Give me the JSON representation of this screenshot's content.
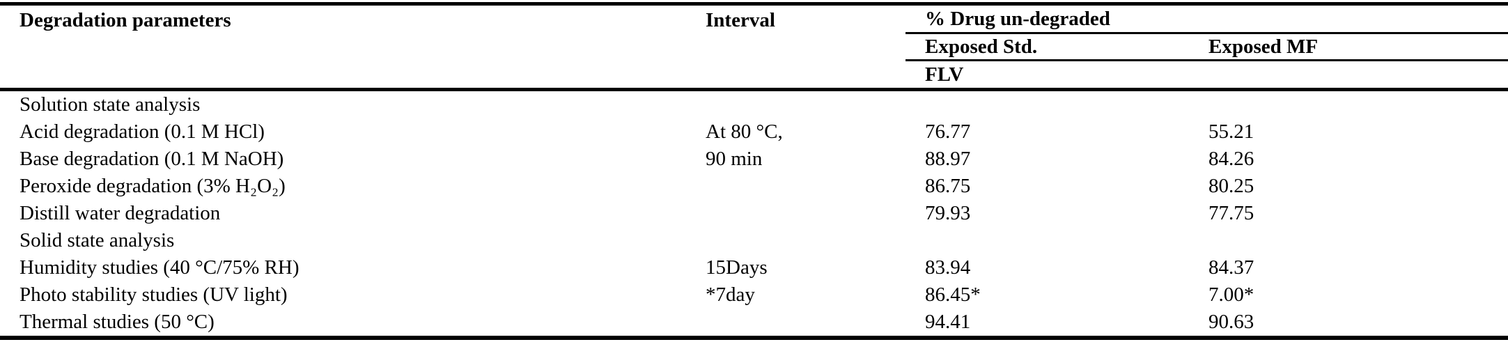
{
  "table": {
    "header": {
      "col_param": "Degradation parameters",
      "col_interval": "Interval",
      "group": "% Drug un-degraded",
      "sub_exposed_std": "Exposed Std.",
      "sub_exposed_mf": "Exposed MF",
      "drug_row_label": "FLV"
    },
    "rows": [
      {
        "param": "Solution state analysis",
        "interval": "",
        "exposed_std": "",
        "exposed_mf": ""
      },
      {
        "param": "Acid degradation (0.1 M HCl)",
        "interval": "At 80 °C,",
        "exposed_std": "76.77",
        "exposed_mf": "55.21"
      },
      {
        "param": "Base degradation (0.1 M NaOH)",
        "interval": "90 min",
        "exposed_std": "88.97",
        "exposed_mf": "84.26"
      },
      {
        "param": "Peroxide degradation (3% H₂O₂)",
        "interval": "",
        "exposed_std": "86.75",
        "exposed_mf": "80.25"
      },
      {
        "param": "Distill water degradation",
        "interval": "",
        "exposed_std": "79.93",
        "exposed_mf": "77.75"
      },
      {
        "param": "Solid state analysis",
        "interval": "",
        "exposed_std": "",
        "exposed_mf": ""
      },
      {
        "param": "Humidity studies (40 °C/75% RH)",
        "interval": "15Days",
        "exposed_std": "83.94",
        "exposed_mf": "84.37"
      },
      {
        "param": "Photo stability studies (UV light)",
        "interval": "*7day",
        "exposed_std": "86.45*",
        "exposed_mf": "7.00*"
      },
      {
        "param": "Thermal studies (50 °C)",
        "interval": "",
        "exposed_std": "94.41",
        "exposed_mf": "90.63"
      }
    ],
    "colors": {
      "text": "#000000",
      "background": "#ffffff",
      "rule": "#000000"
    }
  }
}
